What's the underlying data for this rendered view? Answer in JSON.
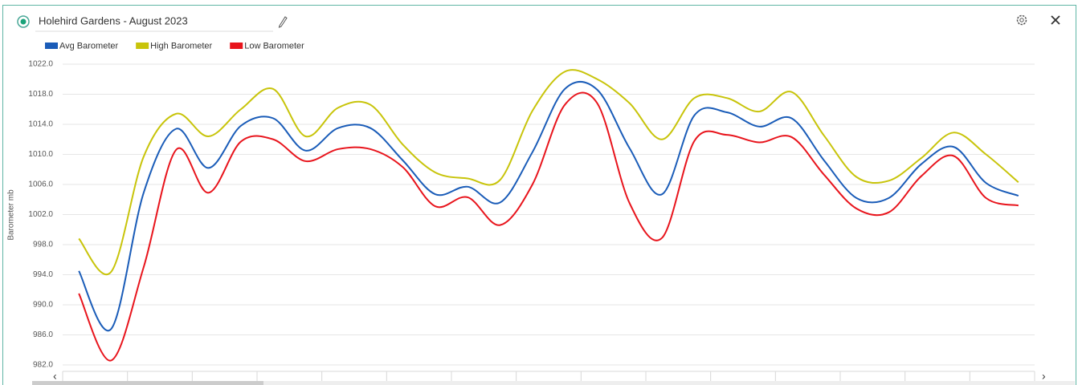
{
  "chart_data": {
    "type": "line",
    "title": "Holehird Gardens - August 2023",
    "y_label": "Barometer mb",
    "categories": [
      null,
      null,
      null,
      null,
      null,
      null,
      null,
      null,
      null,
      null,
      null,
      null,
      null,
      null,
      null,
      null,
      null,
      null,
      null,
      null,
      null,
      null,
      null,
      null,
      null,
      null,
      null,
      null,
      null,
      null
    ],
    "series": [
      {
        "name": "Avg Barometer",
        "color": "#1a5cb8",
        "values": [
          994.5,
          986.8,
          1004.9,
          1013.4,
          1008.2,
          1013.8,
          1014.8,
          1010.5,
          1013.5,
          1013.5,
          1009.2,
          1004.7,
          1005.7,
          1003.6,
          1010.3,
          1018.7,
          1018.6,
          1010.8,
          1004.7,
          1015.2,
          1015.6,
          1013.7,
          1014.8,
          1009.2,
          1004.2,
          1004.2,
          1008.7,
          1011.0,
          1006.2,
          1004.5
        ]
      },
      {
        "name": "High Barometer",
        "color": "#c8c40a",
        "values": [
          998.8,
          994.4,
          1009.7,
          1015.4,
          1012.4,
          1016.0,
          1018.7,
          1012.4,
          1016.2,
          1016.6,
          1011.3,
          1007.6,
          1006.8,
          1006.6,
          1015.8,
          1021.0,
          1020.0,
          1016.8,
          1012.0,
          1017.5,
          1017.5,
          1015.7,
          1018.3,
          1012.5,
          1007.0,
          1006.5,
          1009.5,
          1012.9,
          1010.0,
          1006.3
        ]
      },
      {
        "name": "Low Barometer",
        "color": "#e8141c",
        "values": [
          991.5,
          982.6,
          995.0,
          1010.6,
          1004.9,
          1011.7,
          1012.0,
          1009.1,
          1010.7,
          1010.7,
          1008.3,
          1003.1,
          1004.3,
          1000.6,
          1006.0,
          1016.6,
          1016.8,
          1003.5,
          998.9,
          1011.8,
          1012.6,
          1011.6,
          1012.3,
          1007.3,
          1002.8,
          1002.3,
          1007.1,
          1009.8,
          1004.2,
          1003.2
        ]
      }
    ],
    "ylim": [
      982,
      1022
    ],
    "yticks": [
      {
        "value": 982,
        "label": "982.0"
      },
      {
        "value": 986,
        "label": "986.0"
      },
      {
        "value": 990,
        "label": "990.0"
      },
      {
        "value": 994,
        "label": "994.0"
      },
      {
        "value": 998,
        "label": "998.0"
      },
      {
        "value": 1002,
        "label": "1002.0"
      },
      {
        "value": 1006,
        "label": "1006.0"
      },
      {
        "value": 1010,
        "label": "1010.0"
      },
      {
        "value": 1014,
        "label": "1014.0"
      },
      {
        "value": 1018,
        "label": "1018.0"
      },
      {
        "value": 1022,
        "label": "1022.0"
      }
    ],
    "grid": true,
    "legend": "top-left"
  }
}
